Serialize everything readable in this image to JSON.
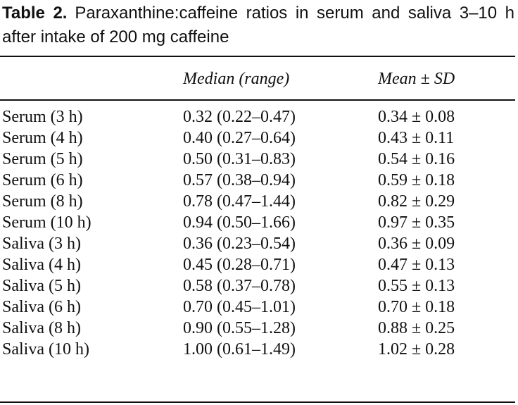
{
  "table": {
    "caption_label": "Table 2.",
    "caption_text": "Paraxanthine:caffeine ratios in serum and saliva 3–10 h after intake of 200 mg caffeine",
    "columns": [
      "",
      "Median (range)",
      "Mean ± SD"
    ],
    "rows": [
      {
        "label": "Serum (3 h)",
        "median_range": "0.32 (0.22–0.47)",
        "mean_sd": "0.34 ± 0.08"
      },
      {
        "label": "Serum (4 h)",
        "median_range": "0.40 (0.27–0.64)",
        "mean_sd": "0.43 ± 0.11"
      },
      {
        "label": "Serum (5 h)",
        "median_range": "0.50 (0.31–0.83)",
        "mean_sd": "0.54 ± 0.16"
      },
      {
        "label": "Serum (6 h)",
        "median_range": "0.57 (0.38–0.94)",
        "mean_sd": "0.59 ± 0.18"
      },
      {
        "label": "Serum (8 h)",
        "median_range": "0.78 (0.47–1.44)",
        "mean_sd": "0.82 ± 0.29"
      },
      {
        "label": "Serum (10 h)",
        "median_range": "0.94 (0.50–1.66)",
        "mean_sd": "0.97 ± 0.35"
      },
      {
        "label": "Saliva (3 h)",
        "median_range": "0.36 (0.23–0.54)",
        "mean_sd": "0.36 ± 0.09"
      },
      {
        "label": "Saliva (4 h)",
        "median_range": "0.45 (0.28–0.71)",
        "mean_sd": "0.47 ± 0.13"
      },
      {
        "label": "Saliva (5 h)",
        "median_range": "0.58 (0.37–0.78)",
        "mean_sd": "0.55 ± 0.13"
      },
      {
        "label": "Saliva (6 h)",
        "median_range": "0.70 (0.45–1.01)",
        "mean_sd": "0.70 ± 0.18"
      },
      {
        "label": "Saliva (8 h)",
        "median_range": "0.90 (0.55–1.28)",
        "mean_sd": "0.88 ± 0.25"
      },
      {
        "label": "Saliva (10 h)",
        "median_range": "1.00 (0.61–1.49)",
        "mean_sd": "1.02 ± 0.28"
      }
    ]
  }
}
